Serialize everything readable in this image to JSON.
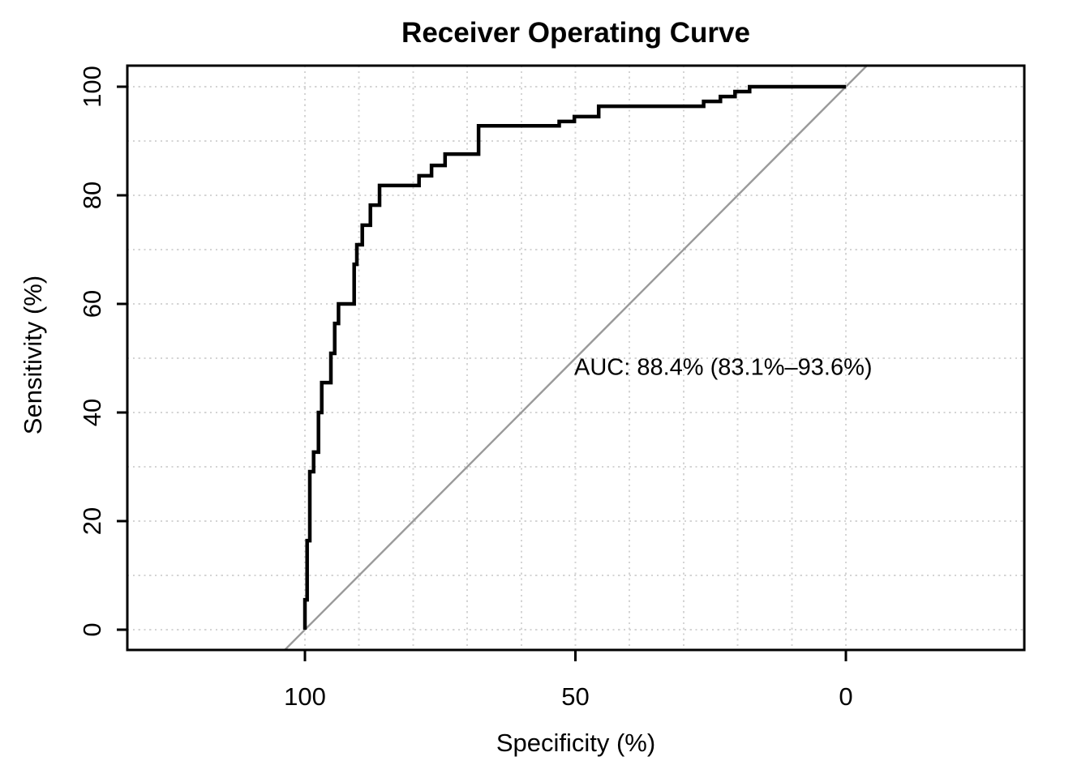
{
  "chart_data": {
    "type": "line",
    "title": "Receiver Operating Curve",
    "xlabel": "Specificity (%)",
    "ylabel": "Sensitivity (%)",
    "x_ticks": [
      100,
      50,
      0
    ],
    "y_ticks": [
      0,
      20,
      40,
      60,
      80,
      100
    ],
    "xlim": [
      100,
      0
    ],
    "ylim": [
      0,
      100
    ],
    "x_axis_reversed": true,
    "grid": {
      "shown": true,
      "style": "dotted",
      "step": 10
    },
    "legend_position": "none",
    "annotation": "AUC: 88.4% (83.1%–93.6%)",
    "auc": {
      "value_pct": 88.4,
      "ci_low_pct": 83.1,
      "ci_high_pct": 93.6
    },
    "series": [
      {
        "name": "ROC step curve",
        "color": "#000000",
        "points": [
          [
            100,
            0
          ],
          [
            100,
            5.5
          ],
          [
            99.6,
            5.5
          ],
          [
            99.6,
            16.4
          ],
          [
            99.1,
            16.4
          ],
          [
            99.1,
            29.1
          ],
          [
            98.4,
            29.1
          ],
          [
            98.4,
            32.7
          ],
          [
            97.5,
            32.7
          ],
          [
            97.5,
            40.0
          ],
          [
            96.9,
            40.0
          ],
          [
            96.9,
            45.5
          ],
          [
            95.2,
            45.5
          ],
          [
            95.2,
            50.9
          ],
          [
            94.5,
            50.9
          ],
          [
            94.5,
            56.4
          ],
          [
            93.8,
            56.4
          ],
          [
            93.8,
            60.0
          ],
          [
            90.9,
            60.0
          ],
          [
            90.9,
            67.3
          ],
          [
            90.4,
            67.3
          ],
          [
            90.4,
            70.9
          ],
          [
            89.4,
            70.9
          ],
          [
            89.4,
            74.5
          ],
          [
            87.9,
            74.5
          ],
          [
            87.9,
            78.2
          ],
          [
            86.2,
            78.2
          ],
          [
            86.2,
            81.8
          ],
          [
            78.9,
            81.8
          ],
          [
            78.9,
            83.6
          ],
          [
            76.6,
            83.6
          ],
          [
            76.6,
            85.5
          ],
          [
            74.1,
            85.5
          ],
          [
            74.1,
            87.6
          ],
          [
            67.9,
            87.6
          ],
          [
            67.9,
            92.8
          ],
          [
            53.0,
            92.8
          ],
          [
            53.0,
            93.6
          ],
          [
            50.2,
            93.6
          ],
          [
            50.2,
            94.5
          ],
          [
            45.7,
            94.5
          ],
          [
            45.7,
            96.4
          ],
          [
            26.3,
            96.4
          ],
          [
            26.3,
            97.3
          ],
          [
            23.2,
            97.3
          ],
          [
            23.2,
            98.2
          ],
          [
            20.5,
            98.2
          ],
          [
            20.5,
            99.1
          ],
          [
            17.8,
            99.1
          ],
          [
            17.8,
            100
          ],
          [
            0,
            100
          ]
        ]
      },
      {
        "name": "Chance diagonal reference",
        "color": "#9a9a9a",
        "points": [
          [
            100,
            0
          ],
          [
            0,
            100
          ]
        ]
      }
    ],
    "colors": {
      "curve": "#000000",
      "diagonal": "#9a9a9a",
      "grid": "#d4d4d4",
      "axis": "#000000",
      "background": "#ffffff",
      "text": "#000000"
    }
  }
}
